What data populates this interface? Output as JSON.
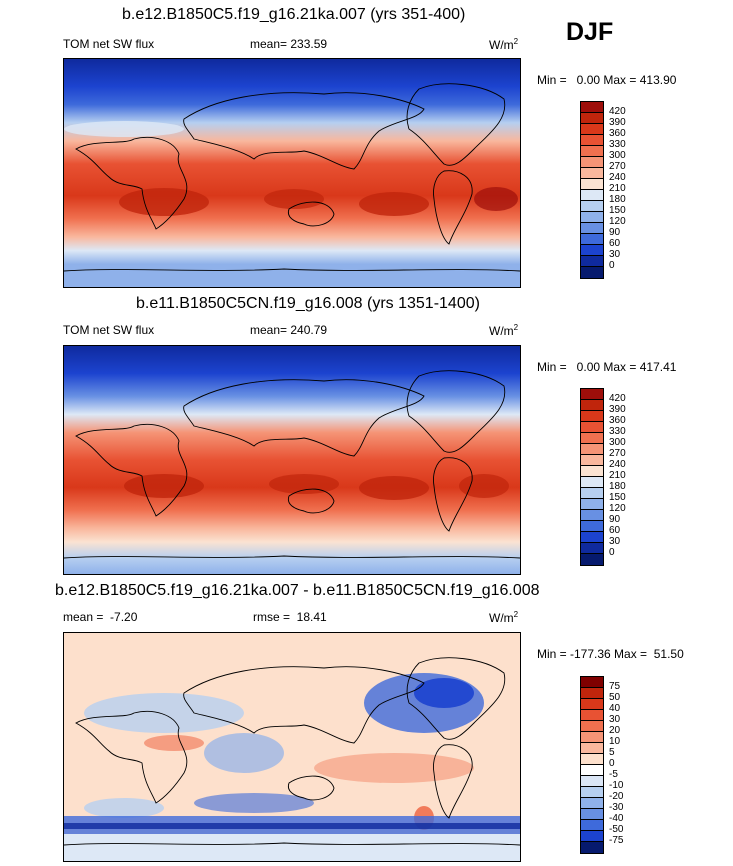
{
  "season": "DJF",
  "units_main": "W/m",
  "units_sup": "2",
  "panels": [
    {
      "title": "b.e12.B1850C5.f19_g16.21ka.007 (yrs 351-400)",
      "left_label": "TOM net SW flux",
      "mean_label": "mean= 233.59",
      "minmax": "Min =   0.00 Max = 413.90",
      "ticks": [
        "420",
        "390",
        "360",
        "330",
        "300",
        "270",
        "240",
        "210",
        "180",
        "150",
        "120",
        "90",
        "60",
        "30",
        "0"
      ],
      "colors": [
        "#9e0e0a",
        "#c0250c",
        "#d9381a",
        "#e85233",
        "#f0704f",
        "#f59476",
        "#f9b79d",
        "#fbe3d2",
        "#dde8f6",
        "#b6cff0",
        "#8fb1ea",
        "#6890e3",
        "#3e6adb",
        "#1c43cf",
        "#0f2a9e",
        "#061a6e"
      ]
    },
    {
      "title": "b.e11.B1850C5CN.f19_g16.008 (yrs 1351-1400)",
      "left_label": "TOM net SW flux",
      "mean_label": "mean= 240.79",
      "minmax": "Min =   0.00 Max = 417.41",
      "ticks": [
        "420",
        "390",
        "360",
        "330",
        "300",
        "270",
        "240",
        "210",
        "180",
        "150",
        "120",
        "90",
        "60",
        "30",
        "0"
      ],
      "colors": [
        "#9e0e0a",
        "#c0250c",
        "#d9381a",
        "#e85233",
        "#f0704f",
        "#f59476",
        "#f9b79d",
        "#fbe3d2",
        "#dde8f6",
        "#b6cff0",
        "#8fb1ea",
        "#6890e3",
        "#3e6adb",
        "#1c43cf",
        "#0f2a9e",
        "#061a6e"
      ]
    },
    {
      "title": "b.e12.B1850C5.f19_g16.21ka.007 - b.e11.B1850C5CN.f19_g16.008",
      "left_label": "mean =  -7.20",
      "mean_label": "rmse =  18.41",
      "minmax": "Min = -177.36 Max =  51.50",
      "ticks": [
        "75",
        "50",
        "40",
        "30",
        "20",
        "10",
        "5",
        "0",
        "-5",
        "-10",
        "-20",
        "-30",
        "-40",
        "-50",
        "-75"
      ],
      "colors": [
        "#7f0000",
        "#c0250c",
        "#d9381a",
        "#e85233",
        "#f0704f",
        "#f59476",
        "#f9b79d",
        "#fde0cc",
        "#ffffff",
        "#dbe6f6",
        "#b6cff0",
        "#8fb1ea",
        "#6890e3",
        "#3e6adb",
        "#1c43cf",
        "#061a6e"
      ]
    }
  ]
}
